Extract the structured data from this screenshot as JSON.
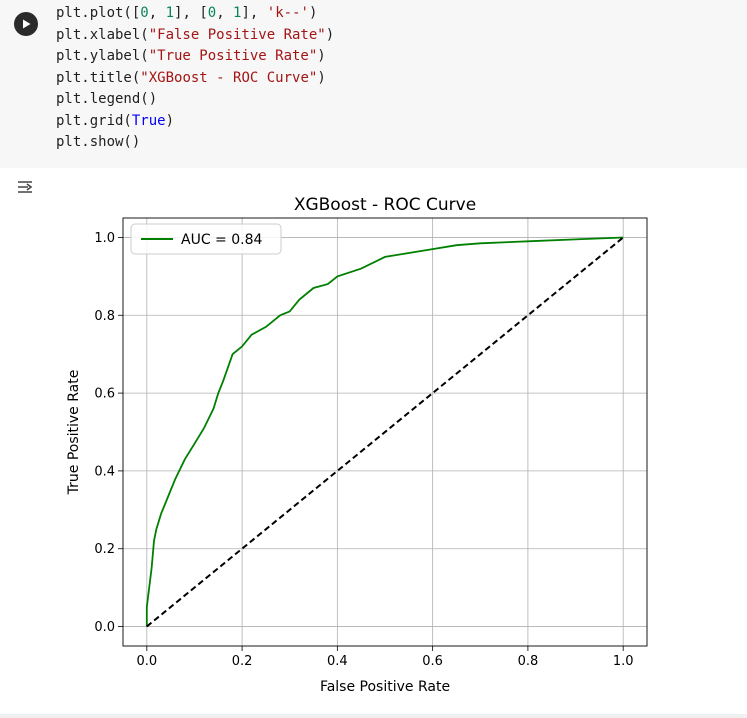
{
  "code_lines": [
    "plt.plot([0, 1], [0, 1], 'k--')",
    "plt.xlabel(\"False Positive Rate\")",
    "plt.ylabel(\"True Positive Rate\")",
    "plt.title(\"XGBoost - ROC Curve\")",
    "plt.legend()",
    "plt.grid(True)",
    "plt.show()"
  ],
  "code": {
    "l1": {
      "a": "plt.plot([",
      "b": "0",
      "c": ", ",
      "d": "1",
      "e": "], [",
      "f": "0",
      "g": ", ",
      "h": "1",
      "i": "], ",
      "j": "'k--'",
      "k": ")"
    },
    "l2": {
      "a": "plt.xlabel(",
      "b": "\"False Positive Rate\"",
      "c": ")"
    },
    "l3": {
      "a": "plt.ylabel(",
      "b": "\"True Positive Rate\"",
      "c": ")"
    },
    "l4": {
      "a": "plt.title(",
      "b": "\"XGBoost - ROC Curve\"",
      "c": ")"
    },
    "l5": {
      "a": "plt.legend()"
    },
    "l6": {
      "a": "plt.grid(",
      "b": "True",
      "c": ")"
    },
    "l7": {
      "a": "plt.show()"
    }
  },
  "icons": {
    "run": "play-icon",
    "output": "output-toggle-icon"
  },
  "colors": {
    "roc_line": "#008000",
    "diagonal": "#000000",
    "grid": "#b0b0b0"
  },
  "chart_data": {
    "type": "line",
    "title": "XGBoost - ROC Curve",
    "xlabel": "False Positive Rate",
    "ylabel": "True Positive Rate",
    "xlim": [
      0,
      1
    ],
    "ylim": [
      0,
      1
    ],
    "xticks": [
      "0.0",
      "0.2",
      "0.4",
      "0.6",
      "0.8",
      "1.0"
    ],
    "yticks": [
      "0.0",
      "0.2",
      "0.4",
      "0.6",
      "0.8",
      "1.0"
    ],
    "grid": true,
    "legend": {
      "position": "top-left",
      "entries": [
        "AUC = 0.84"
      ]
    },
    "series": [
      {
        "name": "AUC = 0.84",
        "style": "solid",
        "color": "#008000",
        "x": [
          0.0,
          0.0,
          0.005,
          0.01,
          0.015,
          0.02,
          0.03,
          0.04,
          0.05,
          0.06,
          0.08,
          0.1,
          0.12,
          0.14,
          0.15,
          0.16,
          0.18,
          0.2,
          0.22,
          0.25,
          0.28,
          0.3,
          0.32,
          0.35,
          0.38,
          0.4,
          0.45,
          0.5,
          0.55,
          0.6,
          0.65,
          0.7,
          0.8,
          0.9,
          1.0
        ],
        "y": [
          0.0,
          0.05,
          0.1,
          0.15,
          0.22,
          0.25,
          0.29,
          0.32,
          0.35,
          0.38,
          0.43,
          0.47,
          0.51,
          0.56,
          0.6,
          0.63,
          0.7,
          0.72,
          0.75,
          0.77,
          0.8,
          0.81,
          0.84,
          0.87,
          0.88,
          0.9,
          0.92,
          0.95,
          0.96,
          0.97,
          0.98,
          0.985,
          0.99,
          0.995,
          1.0
        ]
      },
      {
        "name": "",
        "style": "dashed",
        "color": "#000000",
        "x": [
          0,
          1
        ],
        "y": [
          0,
          1
        ]
      }
    ]
  }
}
